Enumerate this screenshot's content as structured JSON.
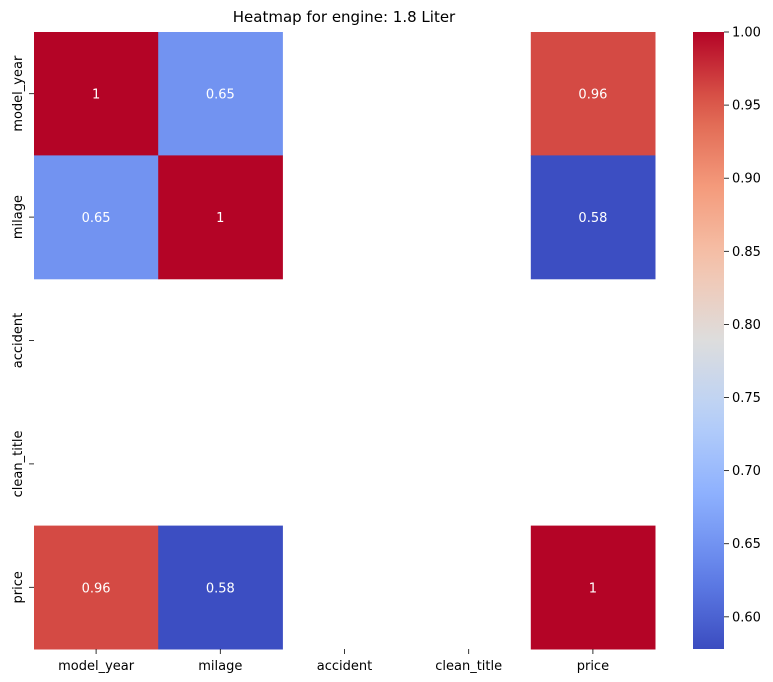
{
  "chart_data": {
    "type": "heatmap",
    "title": "Heatmap for engine: 1.8 Liter",
    "xlabel": "",
    "ylabel": "",
    "row_labels": [
      "model_year",
      "milage",
      "accident",
      "clean_title",
      "price"
    ],
    "col_labels": [
      "model_year",
      "milage",
      "accident",
      "clean_title",
      "price"
    ],
    "values": [
      [
        1,
        0.65,
        null,
        null,
        0.96
      ],
      [
        0.65,
        1,
        null,
        null,
        0.58
      ],
      [
        null,
        null,
        null,
        null,
        null
      ],
      [
        null,
        null,
        null,
        null,
        null
      ],
      [
        0.96,
        0.58,
        null,
        null,
        1
      ]
    ],
    "annotations": [
      [
        "1",
        "0.65",
        "",
        "",
        "0.96"
      ],
      [
        "0.65",
        "1",
        "",
        "",
        "0.58"
      ],
      [
        "",
        "",
        "",
        "",
        ""
      ],
      [
        "",
        "",
        "",
        "",
        ""
      ],
      [
        "0.96",
        "0.58",
        "",
        "",
        "1"
      ]
    ],
    "colormap": "coolwarm",
    "vmin": 0.578,
    "vmax": 1.0,
    "colorbar": {
      "ticks": [
        0.6,
        0.65,
        0.7,
        0.75,
        0.8,
        0.85,
        0.9,
        0.95,
        1.0
      ],
      "tick_labels": [
        "0.60",
        "0.65",
        "0.70",
        "0.75",
        "0.80",
        "0.85",
        "0.90",
        "0.95",
        "1.00"
      ]
    },
    "grid": false
  }
}
